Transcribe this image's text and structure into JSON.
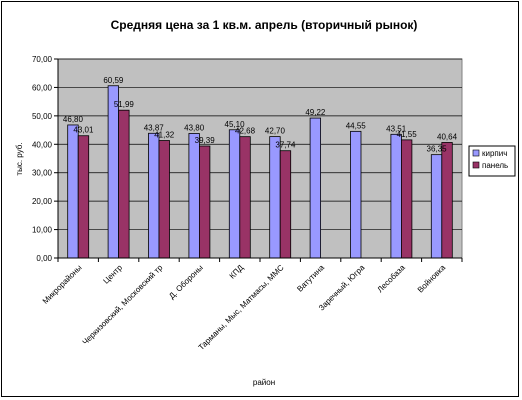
{
  "chart_data": {
    "type": "bar",
    "title": "Средняя цена за 1 кв.м. апрель (вторичный рынок)",
    "xlabel": "район",
    "ylabel": "тыс. руб.",
    "ylim": [
      0,
      70
    ],
    "yticks": [
      "0,00",
      "10,00",
      "20,00",
      "30,00",
      "40,00",
      "50,00",
      "60,00",
      "70,00"
    ],
    "grid": true,
    "legend_position": "right",
    "categories": [
      "Микрорайоны",
      "Центр",
      "Черкизовский, Московский тр",
      "Д. Обороны",
      "КПД",
      "Тарманы, Мыс, Матмасы, ММС",
      "Ватутина",
      "Заречный, Югра",
      "Лесобаза",
      "Войновка"
    ],
    "series": [
      {
        "name": "кирпич",
        "color": "#9999ff",
        "values": [
          46.8,
          60.59,
          43.87,
          43.8,
          45.1,
          42.7,
          49.22,
          44.55,
          43.51,
          36.35
        ],
        "labels": [
          "46,80",
          "60,59",
          "43,87",
          "43,80",
          "45,10",
          "42,70",
          "49,22",
          "44,55",
          "43,51",
          "36,35"
        ]
      },
      {
        "name": "панель",
        "color": "#993366",
        "values": [
          43.01,
          51.99,
          41.32,
          39.39,
          42.68,
          37.74,
          null,
          null,
          41.55,
          40.64
        ],
        "labels": [
          "43,01",
          "51,99",
          "41,32",
          "39,39",
          "42,68",
          "37,74",
          null,
          null,
          "41,55",
          "40,64"
        ]
      }
    ],
    "colors": {
      "plot_background": "#c0c0c0",
      "gridline": "#000000"
    }
  }
}
